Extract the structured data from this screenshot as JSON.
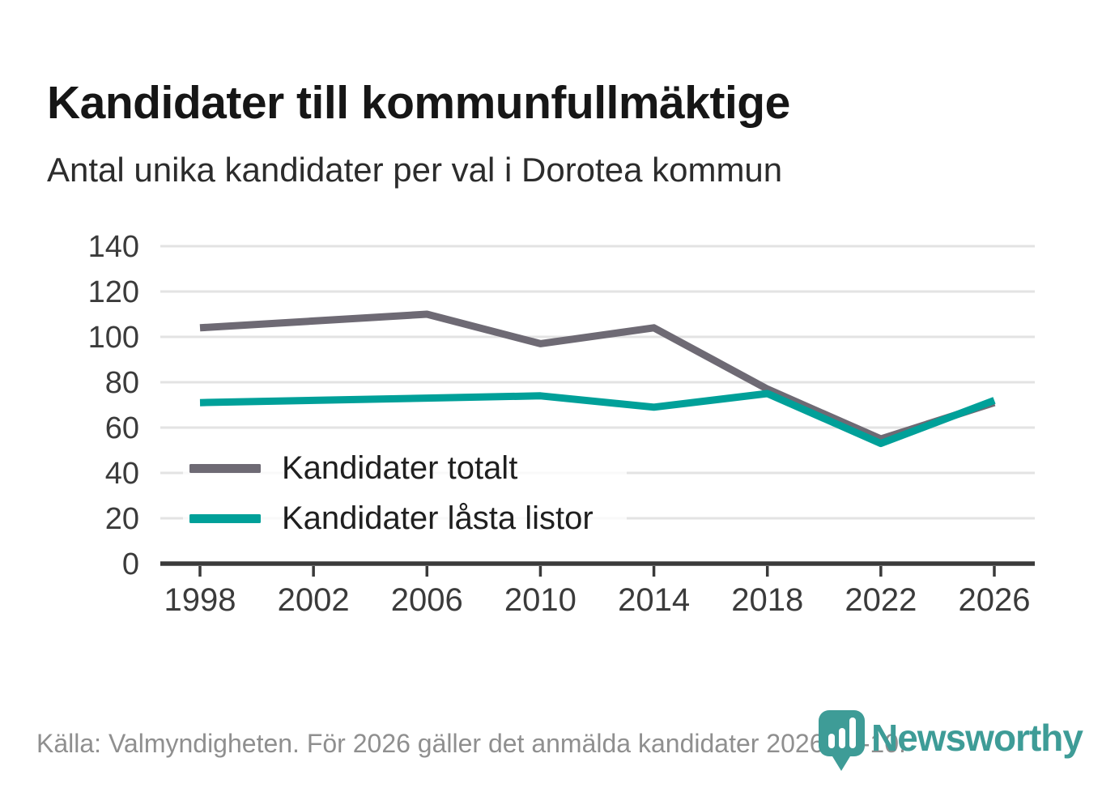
{
  "header": {
    "title": "Kandidater till kommunfullmäktige",
    "subtitle": "Antal unika kandidater per val i Dorotea kommun"
  },
  "chart_data": {
    "type": "line",
    "x": [
      1998,
      2002,
      2006,
      2010,
      2014,
      2018,
      2022,
      2026
    ],
    "series": [
      {
        "name": "Kandidater totalt",
        "color": "#6E6A74",
        "values": [
          104,
          107,
          110,
          97,
          104,
          77,
          55,
          71
        ]
      },
      {
        "name": "Kandidater låsta listor",
        "color": "#00A099",
        "values": [
          71,
          72,
          73,
          74,
          69,
          75,
          53,
          72
        ]
      }
    ],
    "ylim": [
      0,
      140
    ],
    "yticks": [
      0,
      20,
      40,
      60,
      80,
      100,
      120,
      140
    ],
    "grid": "horizontal",
    "legend_position": "inside-bottom-left",
    "xlabel": "",
    "ylabel": ""
  },
  "footer": {
    "source_text": "Källa: Valmyndigheten. För 2026 gäller det anmälda kandidater 2026-04-10.",
    "brand": "Newsworthy",
    "brand_color": "#3E9C97"
  },
  "colors": {
    "grid": "#E3E3E3",
    "axis": "#3A3A3A",
    "axis_text": "#3B3B3B",
    "title_text": "#161616",
    "source_text": "#8F8F8F"
  }
}
